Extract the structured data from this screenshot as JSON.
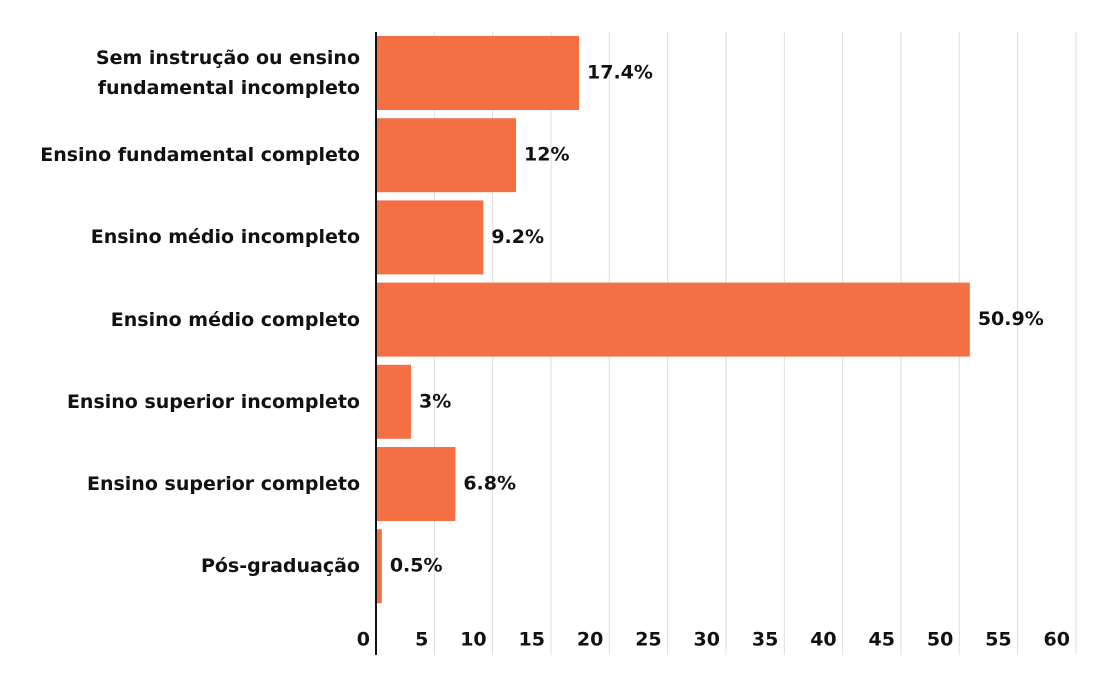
{
  "chart_data": {
    "type": "bar",
    "orientation": "horizontal",
    "categories": [
      "Sem instrução ou ensino\nfundamental incompleto",
      "Ensino fundamental completo",
      "Ensino médio incompleto",
      "Ensino médio completo",
      "Ensino superior incompleto",
      "Ensino superior completo",
      "Pós-graduação"
    ],
    "values": [
      17.4,
      12,
      9.2,
      50.9,
      3,
      6.8,
      0.5
    ],
    "value_labels": [
      "17.4%",
      "12%",
      "9.2%",
      "50.9%",
      "3%",
      "6.8%",
      "0.5%"
    ],
    "color": "#f47044",
    "xlim": [
      0,
      60
    ],
    "xticks": [
      0,
      5,
      10,
      15,
      20,
      25,
      30,
      35,
      40,
      45,
      50,
      55,
      60
    ],
    "grid": true
  }
}
